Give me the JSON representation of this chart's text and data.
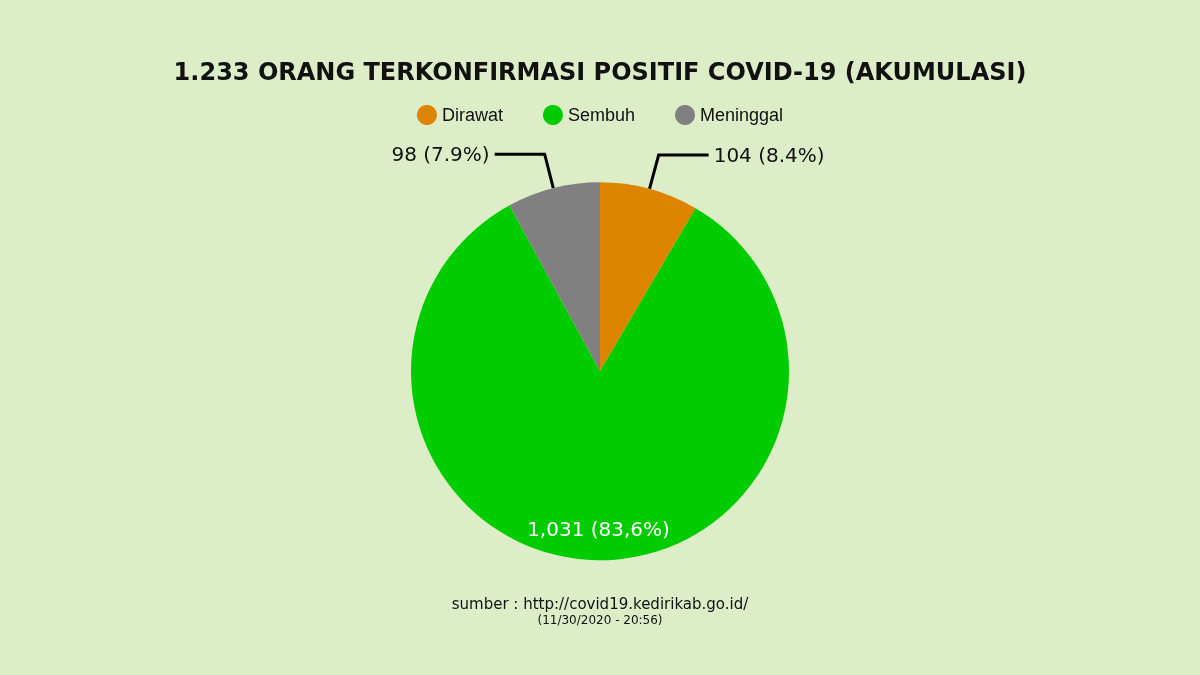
{
  "chart_data": {
    "type": "pie",
    "title": "1.233 ORANG TERKONFIRMASI POSITIF COVID-19 (AKUMULASI)",
    "categories": [
      "Dirawat",
      "Sembuh",
      "Meninggal"
    ],
    "values": [
      104,
      1031,
      98
    ],
    "colors": [
      "#dd8500",
      "#00cc00",
      "#808080"
    ],
    "value_labels": [
      "104 (8.4%)",
      "1,031 (83,6%)",
      "98 (7.9%)"
    ],
    "legend": "top",
    "annotations": [
      "sumber : http://covid19.kedirikab.go.id/",
      "(11/30/2020 - 20:56)"
    ]
  }
}
